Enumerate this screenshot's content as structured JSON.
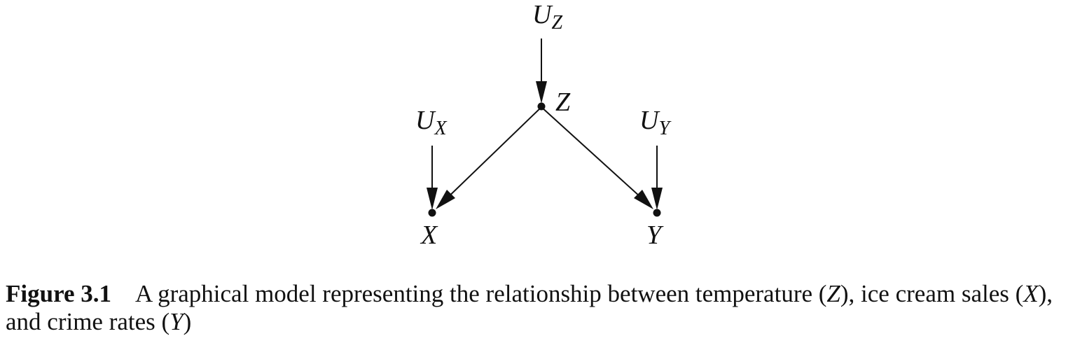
{
  "nodes": {
    "uz": {
      "base": "U",
      "sub": "Z"
    },
    "z": {
      "label": "Z"
    },
    "ux": {
      "base": "U",
      "sub": "X"
    },
    "uy": {
      "base": "U",
      "sub": "Y"
    },
    "x": {
      "label": "X"
    },
    "y": {
      "label": "Y"
    }
  },
  "edges": [
    {
      "from": "U_Z",
      "to": "Z"
    },
    {
      "from": "Z",
      "to": "X"
    },
    {
      "from": "Z",
      "to": "Y"
    },
    {
      "from": "U_X",
      "to": "X"
    },
    {
      "from": "U_Y",
      "to": "Y"
    }
  ],
  "caption": {
    "figure_number": "Figure 3.1",
    "text_1": "A graphical model representing the relationship between temperature (",
    "var_z": "Z",
    "text_2": "), ice cream sales (",
    "var_x": "X",
    "text_3": "), and crime rates (",
    "var_y": "Y",
    "text_4": ")"
  },
  "colors": {
    "ink": "#111111",
    "background": "#ffffff"
  }
}
